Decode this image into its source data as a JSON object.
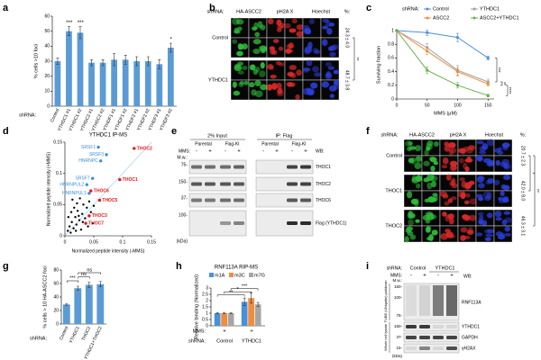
{
  "panel_labels": [
    "a",
    "b",
    "c",
    "d",
    "e",
    "f",
    "g",
    "h",
    "i"
  ],
  "chart_data": [
    {
      "type": "bar",
      "ylabel": "% cells >10 foci",
      "xlabel": "shRNA:",
      "categories": [
        "Control",
        "YTHDC1 #1",
        "YTHDC1 #2",
        "YTHDC2 #1",
        "YTHDC2 #2",
        "YTHDF1 #1",
        "YTHDF1 #2",
        "YTHDF2 #1",
        "YTHDF2 #2",
        "YTHDF3 #1",
        "YTHDF3 #2"
      ],
      "values": [
        30,
        50,
        49,
        29,
        29,
        31,
        31,
        30,
        30,
        28,
        39
      ],
      "errors": [
        2,
        3,
        4,
        2,
        2,
        4,
        3,
        3,
        3,
        3,
        3
      ],
      "color": "#5b9bd5",
      "ylim": [
        0,
        60
      ],
      "yticks": [
        0,
        10,
        20,
        30,
        40,
        50,
        60
      ],
      "annotations": [
        "***",
        "***",
        "*"
      ]
    },
    {
      "type": "line",
      "xlabel": "MMS (μM)",
      "ylabel": "Surviving fraction",
      "legend_title": "shRNA:",
      "x": [
        0,
        50,
        100,
        150
      ],
      "xlim": [
        0,
        160
      ],
      "xticks": [
        0,
        50,
        100,
        150
      ],
      "ylim": [
        0,
        1
      ],
      "yticks": [
        0,
        0.2,
        0.4,
        0.6,
        0.8,
        1
      ],
      "series": [
        {
          "name": "Control",
          "color": "#4a90d9",
          "values": [
            1,
            0.97,
            0.9,
            0.6
          ],
          "errors": [
            0,
            0.04,
            0.06,
            0.03
          ]
        },
        {
          "name": "YTHDC1",
          "color": "#9e9e9e",
          "values": [
            1,
            0.75,
            0.42,
            0.25
          ],
          "errors": [
            0,
            0.06,
            0.07,
            0.04
          ]
        },
        {
          "name": "ASCC2",
          "color": "#f08c3c",
          "values": [
            1,
            0.7,
            0.4,
            0.22
          ],
          "errors": [
            0,
            0.05,
            0.06,
            0.03
          ]
        },
        {
          "name": "ASCC2+YTHDC1",
          "color": "#6ab04c",
          "values": [
            1,
            0.42,
            0.2,
            0.05
          ],
          "errors": [
            0,
            0.05,
            0.04,
            0.02
          ]
        }
      ],
      "annotations": [
        "***",
        "**",
        "****"
      ]
    },
    {
      "type": "scatter",
      "title": "YTHDC1 IP-MS",
      "xlabel": "Normalized peptide intensity (-MMS)",
      "ylabel": "Normalized peptide intensity (+MMS)",
      "xlim": [
        0,
        0.15
      ],
      "xticks": [
        0,
        0.05,
        0.1,
        0.15
      ],
      "ylim": [
        0,
        0.15
      ],
      "yticks": [
        0,
        0.05,
        0.1,
        0.15
      ],
      "series": [
        {
          "color": "#000000",
          "x": [
            0.005,
            0.008,
            0.01,
            0.012,
            0.015,
            0.018,
            0.02,
            0.022,
            0.025,
            0.028,
            0.03,
            0.032,
            0.035,
            0.038,
            0.04,
            0.042,
            0.045,
            0.048,
            0.05,
            0.006,
            0.011,
            0.016,
            0.021,
            0.026,
            0.031,
            0.013,
            0.019,
            0.024
          ],
          "y": [
            0.008,
            0.015,
            0.005,
            0.022,
            0.012,
            0.03,
            0.018,
            0.04,
            0.025,
            0.01,
            0.035,
            0.05,
            0.028,
            0.045,
            0.015,
            0.055,
            0.038,
            0.02,
            0.048,
            0.03,
            0.038,
            0.045,
            0.052,
            0.06,
            0.022,
            0.058,
            0.008,
            0.032
          ]
        },
        {
          "color": "#3b8fd9",
          "x": [
            0.058,
            0.072,
            0.062,
            0.048,
            0.038,
            0.042
          ],
          "y": [
            0.142,
            0.13,
            0.12,
            0.092,
            0.082,
            0.068
          ],
          "labels": [
            "SRSF1",
            "SRSF3",
            "HNRNPC",
            "SRSF7",
            "HNRNPUL2",
            "HNRNPUL1"
          ]
        },
        {
          "color": "#e31a1c",
          "x": [
            0.12,
            0.095,
            0.045,
            0.06,
            0.042,
            0.036
          ],
          "y": [
            0.14,
            0.09,
            0.072,
            0.057,
            0.032,
            0.02
          ],
          "labels": [
            "THOC2",
            "THOC1",
            "THOC6",
            "THOC5",
            "THOC3",
            "THOC7"
          ]
        }
      ]
    },
    {
      "type": "bar",
      "ylabel": "% cells > 10 HA-ASCC2 foci",
      "xlabel": "shRNA:",
      "categories": [
        "Control",
        "YTHDC1",
        "THOC2",
        "YTHDC1+THOC2"
      ],
      "values": [
        29,
        53,
        58,
        59
      ],
      "errors": [
        1.5,
        3,
        4,
        4
      ],
      "color": "#5b9bd5",
      "ylim": [
        0,
        80
      ],
      "yticks": [
        0,
        20,
        40,
        60,
        80
      ],
      "annotations": [
        "***",
        "ns",
        "ns"
      ]
    },
    {
      "type": "bar",
      "title": "RNF113A RIP-MS",
      "ylabel": "Relative binding (Normalized)",
      "xlabel": "shRNA:",
      "mms_label": "MMS:",
      "mms": [
        "+",
        "+"
      ],
      "categories": [
        "Control",
        "YTHDC1"
      ],
      "series": [
        {
          "name": "m1A",
          "color": "#4a90d9",
          "values": [
            1,
            1.9
          ],
          "errors": [
            0.02,
            0.3
          ]
        },
        {
          "name": "m3C",
          "color": "#f08c3c",
          "values": [
            1,
            2.2
          ],
          "errors": [
            0.02,
            0.4
          ]
        },
        {
          "name": "m7G",
          "color": "#a5a5a5",
          "values": [
            1,
            1.7
          ],
          "errors": [
            0.02,
            0.15
          ]
        }
      ],
      "ylim": [
        0,
        3
      ],
      "yticks": [
        0,
        0.5,
        1,
        1.5,
        2,
        2.5,
        3
      ],
      "annotations": [
        "**",
        "*",
        "***"
      ]
    }
  ],
  "panel_b": {
    "shrna_label": "shRNA:",
    "channels": [
      "HA-ASCC2",
      "pH2A X",
      "Hoechst"
    ],
    "rows": [
      "Control",
      "YTHDC1"
    ],
    "percent_label": "%:",
    "percents": [
      "24.3 ± 4.0",
      "48.7 ± 3.8"
    ],
    "significance": [
      "**"
    ]
  },
  "panel_e": {
    "input_header": "2% Input",
    "ip_header": "IP: Flag",
    "lines": [
      "Parental",
      "Flag-KI",
      "Parental",
      "Flag-KI"
    ],
    "mms_label": "MMS:",
    "mms": [
      "-",
      "+",
      "-",
      "+",
      "-",
      "+",
      "-",
      "+"
    ],
    "mw_label": "M.w.:",
    "mw": [
      "75-",
      "150-",
      "37-",
      "100-"
    ],
    "mw_unit": "(kDa)",
    "wb_label": "WB:",
    "wb": [
      "THOC1",
      "THOC2",
      "THOC6",
      "Flag (YTHDC1)"
    ]
  },
  "panel_f": {
    "shrna_label": "shRNA:",
    "channels": [
      "HA-ASCC2",
      "pH2A X",
      "Hoechst"
    ],
    "rows": [
      "Control",
      "THOC1",
      "THOC2"
    ],
    "percent_label": "%:",
    "percents": [
      "20.7 ± 2.3",
      "42.0 ± 8.0",
      "46.3 ± 3.1"
    ],
    "significance": [
      "*",
      "**"
    ]
  },
  "panel_i": {
    "shrna_label": "shRNA:",
    "shrna": [
      "Control",
      "YTHDC1"
    ],
    "mms_label": "MMS:",
    "mms": [
      "-",
      "+",
      "-",
      "+"
    ],
    "wb_label": "WB:",
    "mw_label": "M.w.:",
    "mw": [
      "150-",
      "100-",
      "75-",
      "150-",
      "37-",
      "15-"
    ],
    "mw_unit": "(kDa)",
    "wb": [
      "RNF113A",
      "YTHDC1",
      "GAPDH",
      "γH2AX"
    ],
    "sections": [
      "TUBE (Ubiquitin) pulldown",
      "Whole cell lysate"
    ]
  }
}
